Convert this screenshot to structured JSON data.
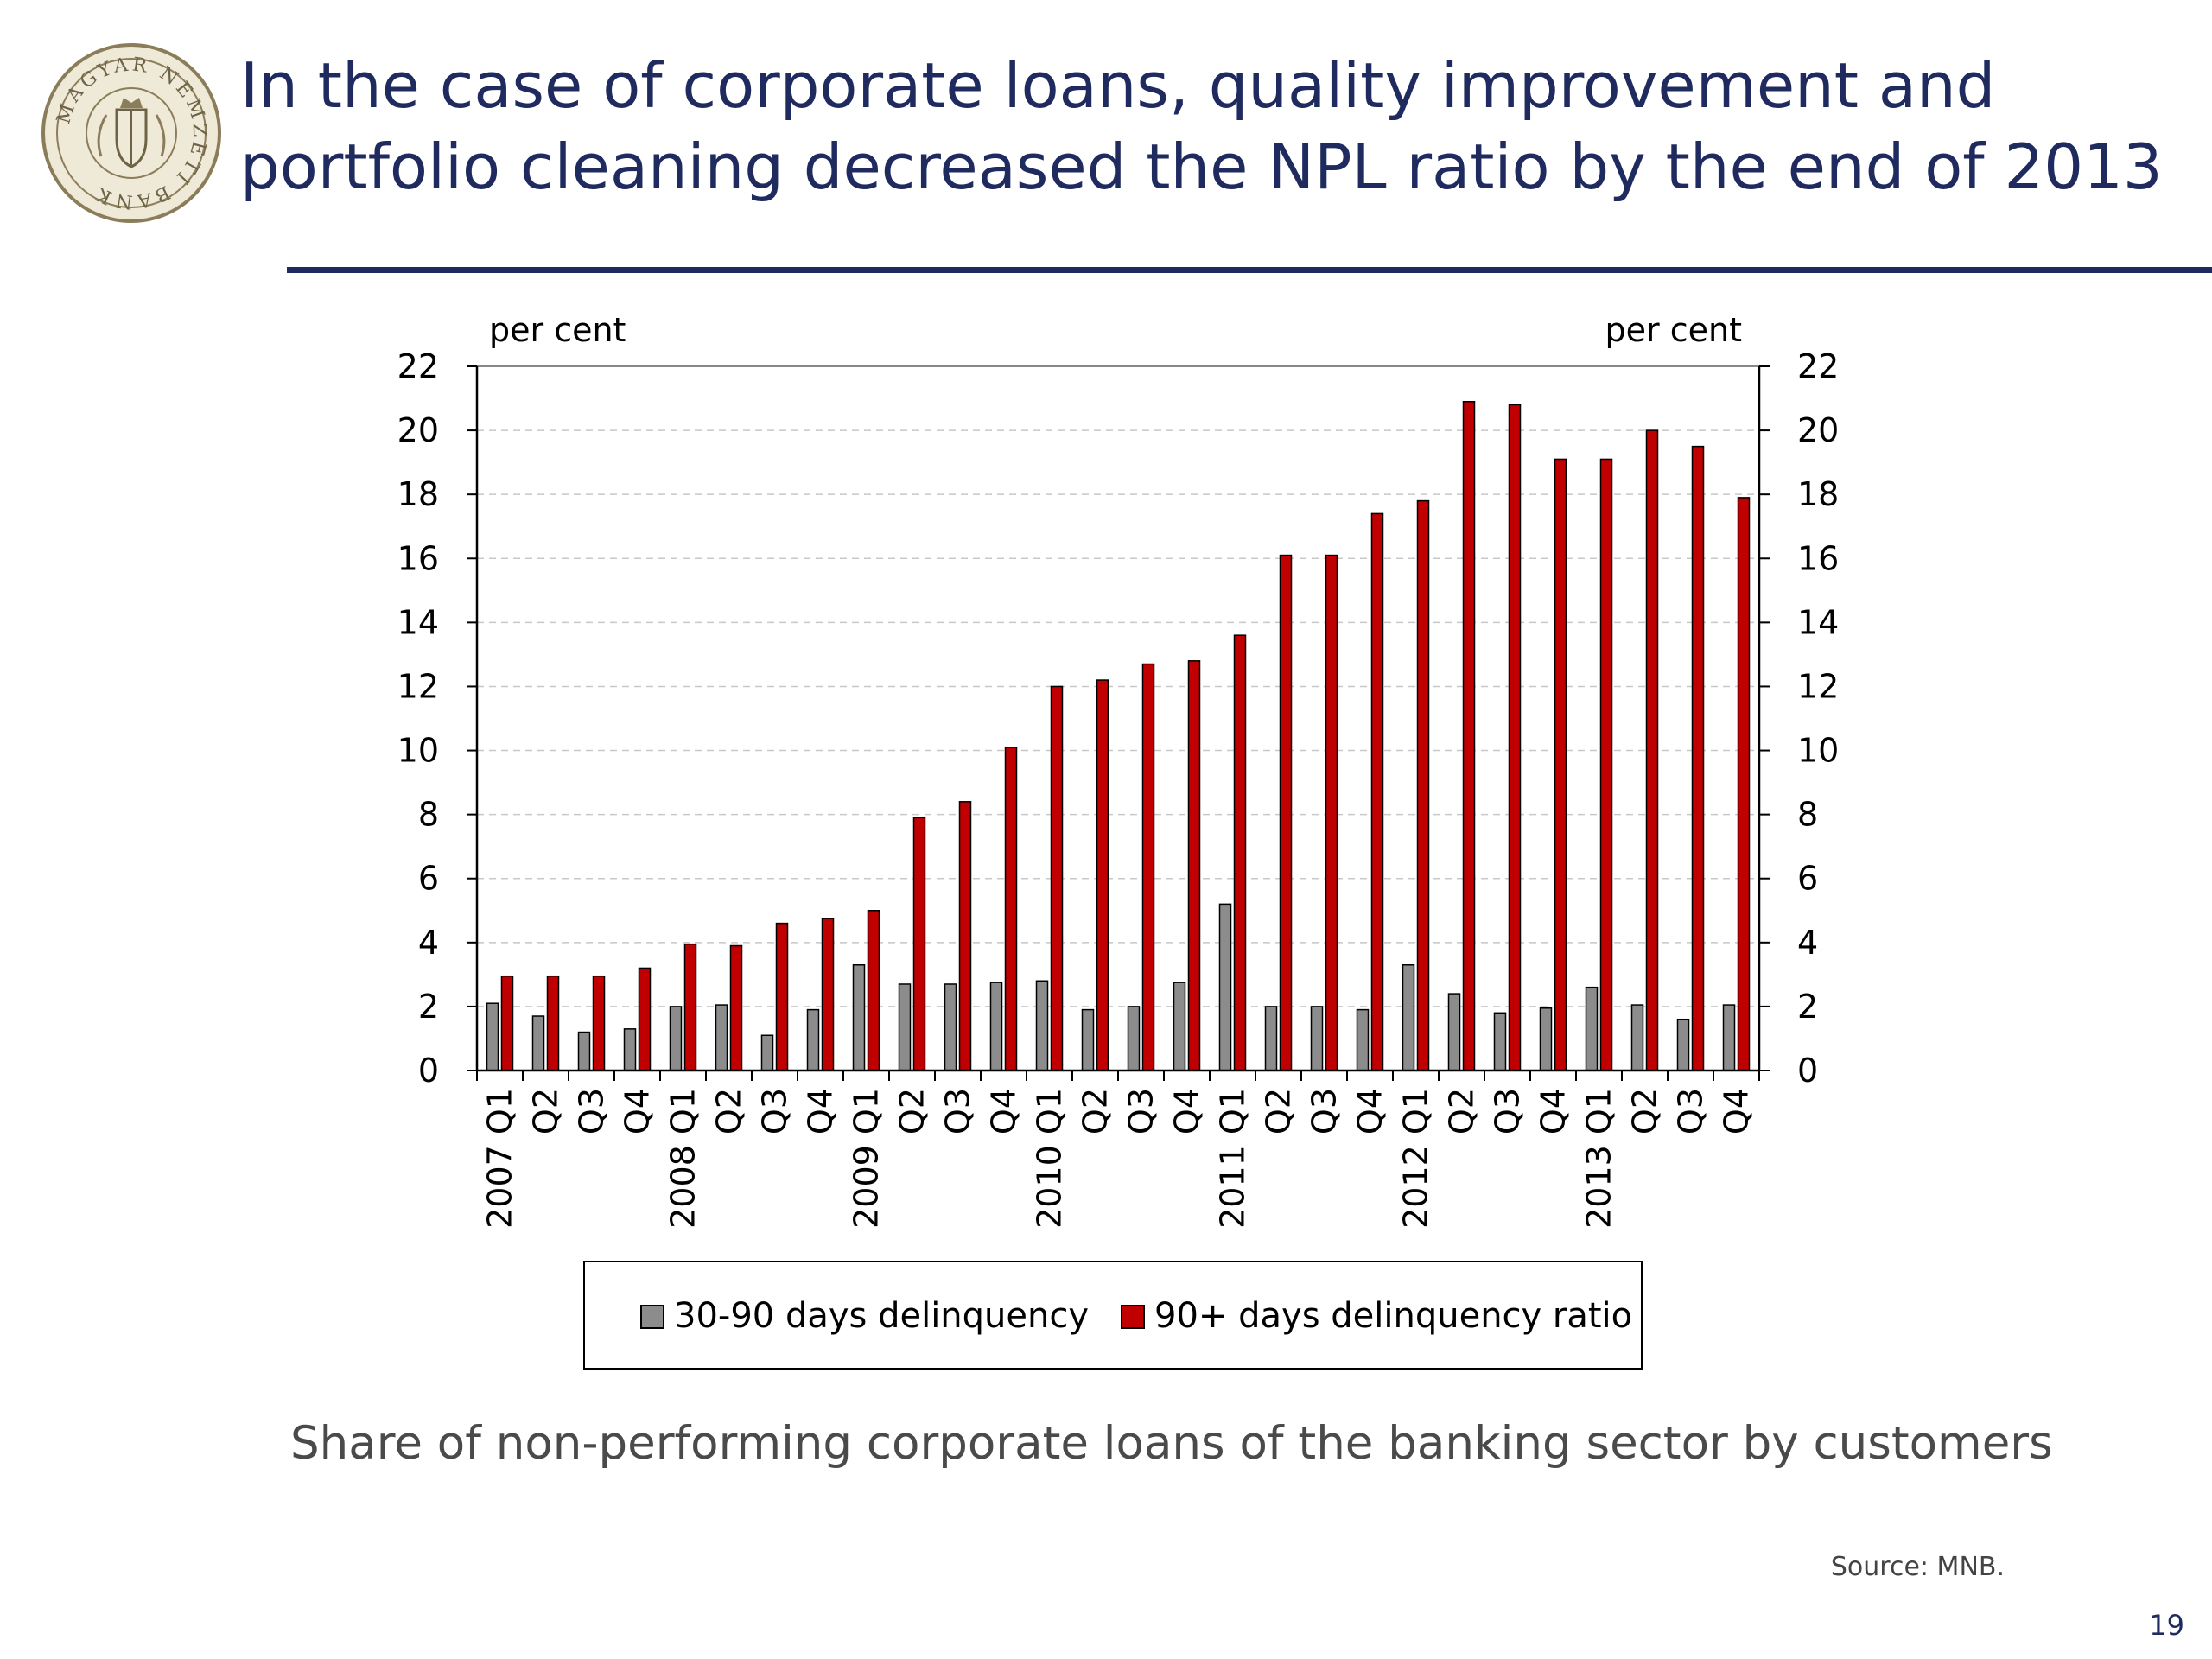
{
  "slide": {
    "title": "In the case of corporate loans, quality improvement and portfolio cleaning decreased the NPL ratio by the end of 2013",
    "caption": "Share of non-performing corporate loans of the banking sector by customers",
    "source": "Source: MNB.",
    "page_number": "19",
    "logo_text": "MAGYAR NEMZETI BANK",
    "colors": {
      "title": "#1f2a5e",
      "rule": "#1f2a5e",
      "caption": "#4a4a4a"
    }
  },
  "chart_data": {
    "type": "bar",
    "ylabel_left": "per cent",
    "ylabel_right": "per cent",
    "ylim": [
      0,
      22
    ],
    "yticks": [
      0,
      2,
      4,
      6,
      8,
      10,
      12,
      14,
      16,
      18,
      20,
      22
    ],
    "grid": true,
    "legend_position": "bottom",
    "categories": [
      "2007 Q1",
      "Q2",
      "Q3",
      "Q4",
      "2008 Q1",
      "Q2",
      "Q3",
      "Q4",
      "2009 Q1",
      "Q2",
      "Q3",
      "Q4",
      "2010 Q1",
      "Q2",
      "Q3",
      "Q4",
      "2011 Q1",
      "Q2",
      "Q3",
      "Q4",
      "2012 Q1",
      "Q2",
      "Q3",
      "Q4",
      "2013 Q1",
      "Q2",
      "Q3",
      "Q4"
    ],
    "series": [
      {
        "name": "30-90 days delinquency",
        "color": "#8c8c8c",
        "values": [
          2.1,
          1.7,
          1.2,
          1.3,
          2.0,
          2.05,
          1.1,
          1.9,
          3.3,
          2.7,
          2.7,
          2.75,
          2.8,
          1.9,
          2.0,
          2.75,
          5.2,
          2.0,
          2.0,
          1.9,
          3.3,
          2.4,
          1.8,
          1.95,
          2.6,
          2.05,
          1.6,
          2.05
        ]
      },
      {
        "name": "90+ days delinquency ratio",
        "color": "#c00000",
        "values": [
          2.95,
          2.95,
          2.95,
          3.2,
          3.95,
          3.9,
          4.6,
          4.75,
          5.0,
          7.9,
          8.4,
          10.1,
          12.0,
          12.2,
          12.7,
          12.8,
          13.6,
          16.1,
          16.1,
          17.4,
          17.8,
          20.9,
          20.8,
          19.1,
          19.1,
          20.0,
          19.5,
          17.9
        ]
      }
    ]
  }
}
